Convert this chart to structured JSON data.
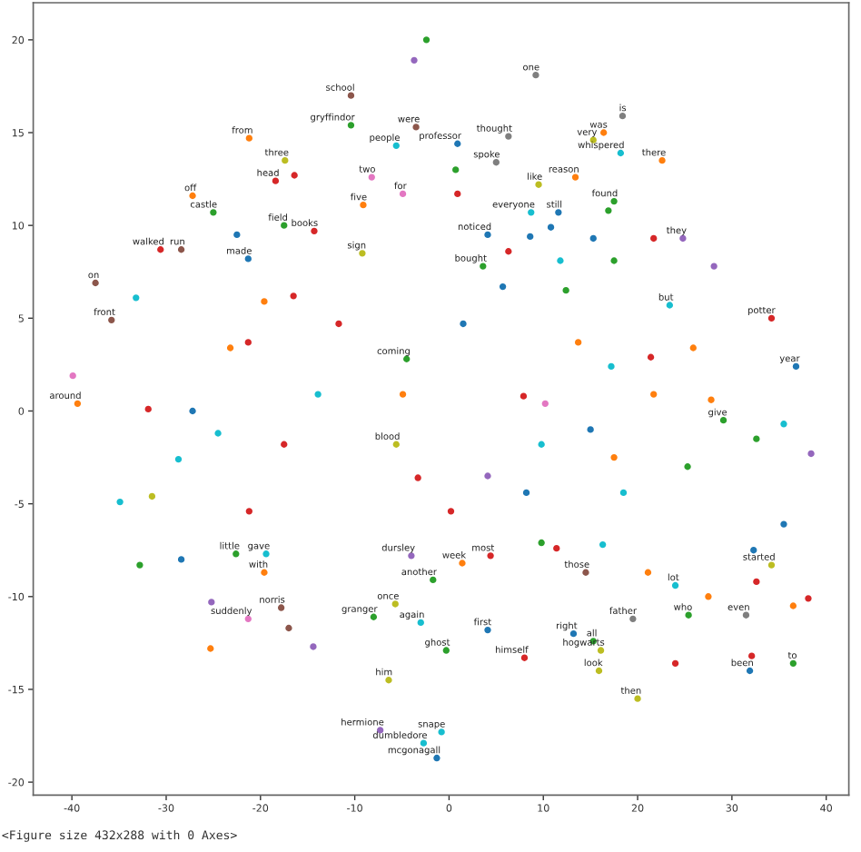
{
  "chart_data": {
    "type": "scatter",
    "marker": "circle",
    "xlim": [
      -44.1,
      42.4
    ],
    "ylim": [
      -20.7,
      22.0
    ],
    "xticks": [
      -40,
      -30,
      -20,
      -10,
      0,
      10,
      20,
      30,
      40
    ],
    "yticks": [
      -20,
      -15,
      -10,
      -5,
      0,
      5,
      10,
      15,
      20
    ],
    "x": [
      -10.4,
      -10.4,
      -21.2,
      -5.6,
      -17.4,
      -18.4,
      -8.2,
      -9.1,
      -4.9,
      -27.2,
      -25.0,
      -17.5,
      -14.3,
      -30.6,
      -28.4,
      -21.3,
      -9.2,
      9.2,
      18.4,
      16.4,
      15.3,
      18.2,
      0.9,
      6.3,
      22.6,
      9.5,
      13.4,
      5.0,
      17.5,
      8.7,
      11.6,
      4.1,
      3.6,
      24.8,
      -37.5,
      -35.8,
      -39.4,
      -5.6,
      -4.5,
      34.2,
      23.4,
      36.8,
      29.1,
      -4.0,
      -1.7,
      -19.6,
      -19.4,
      -22.6,
      -5.7,
      -3.0,
      -8.0,
      -17.8,
      -21.3,
      -6.4,
      -7.3,
      -0.8,
      -2.7,
      -1.3,
      -0.3,
      8.0,
      15.9,
      16.1,
      15.3,
      13.2,
      4.1,
      19.5,
      25.4,
      31.9,
      36.5,
      20.0,
      24.0,
      31.5,
      1.4,
      4.4,
      14.5,
      34.2,
      -33.2,
      -19.6,
      -16.5,
      -11.7,
      -31.9,
      -27.2,
      -24.5,
      -28.7,
      -34.9,
      -31.5,
      -21.2,
      -13.9,
      -17.5,
      -4.9,
      -3.3,
      -23.2,
      -21.3,
      -39.9,
      13.7,
      17.2,
      21.4,
      25.9,
      7.9,
      10.2,
      21.7,
      27.8,
      35.5,
      32.6,
      15.0,
      17.5,
      25.3,
      9.8,
      4.1,
      8.2,
      18.5,
      35.5,
      0.2,
      5.7,
      12.4,
      1.5,
      32.3,
      38.1,
      36.5,
      27.5,
      32.6,
      21.1,
      11.4,
      16.3,
      9.8,
      -22.5,
      0.7,
      0.9,
      16.9,
      8.6,
      10.8,
      15.3,
      21.7,
      6.3,
      11.8,
      17.5,
      28.1,
      -2.4,
      -3.7,
      -32.8,
      -28.4,
      -25.3,
      -14.4,
      -25.2,
      -17.0,
      38.4,
      24.0,
      32.1,
      -16.4,
      -3.5
    ],
    "values": [
      17.0,
      15.4,
      14.7,
      14.3,
      13.5,
      12.4,
      12.6,
      11.1,
      11.7,
      11.6,
      10.7,
      10.0,
      9.7,
      8.7,
      8.7,
      8.2,
      8.5,
      18.1,
      15.9,
      15.0,
      14.6,
      13.9,
      14.4,
      14.8,
      13.5,
      12.2,
      12.6,
      13.4,
      11.3,
      10.7,
      10.7,
      9.5,
      7.8,
      9.3,
      6.9,
      4.9,
      0.4,
      -1.8,
      2.8,
      5.0,
      5.7,
      2.4,
      -0.5,
      -7.8,
      -9.1,
      -8.7,
      -7.7,
      -7.7,
      -10.4,
      -11.4,
      -11.1,
      -10.6,
      -11.2,
      -14.5,
      -17.2,
      -17.3,
      -17.9,
      -18.7,
      -12.9,
      -13.3,
      -14.0,
      -12.9,
      -12.4,
      -12.0,
      -11.8,
      -11.2,
      -11.0,
      -14.0,
      -13.6,
      -15.5,
      -9.4,
      -11.0,
      -8.2,
      -7.8,
      -8.7,
      -8.3,
      6.1,
      5.9,
      6.2,
      4.7,
      0.1,
      0.0,
      -1.2,
      -2.6,
      -4.9,
      -4.6,
      -5.4,
      0.9,
      -1.8,
      0.9,
      -3.6,
      3.4,
      3.7,
      1.9,
      3.7,
      2.4,
      2.9,
      3.4,
      0.8,
      0.4,
      0.9,
      0.6,
      -0.7,
      -1.5,
      -1.0,
      -2.5,
      -3.0,
      -1.8,
      -3.5,
      -4.4,
      -4.4,
      -6.1,
      -5.4,
      6.7,
      6.5,
      4.7,
      -7.5,
      -10.1,
      -10.5,
      -10.0,
      -9.2,
      -8.7,
      -7.4,
      -7.2,
      -7.1,
      9.5,
      13.0,
      11.7,
      10.8,
      9.4,
      9.9,
      9.3,
      9.3,
      8.6,
      8.1,
      8.1,
      7.8,
      20.0,
      18.9,
      -8.3,
      -8.0,
      -12.8,
      -12.7,
      -10.3,
      -11.7,
      -2.3,
      -13.6,
      -13.2,
      12.7,
      15.3
    ],
    "colors": [
      "#8c564b",
      "#2ca02c",
      "#ff7f0e",
      "#17becf",
      "#bcbd22",
      "#d62728",
      "#e377c2",
      "#ff7f0e",
      "#e377c2",
      "#ff7f0e",
      "#2ca02c",
      "#2ca02c",
      "#d62728",
      "#d62728",
      "#8c564b",
      "#1f77b4",
      "#bcbd22",
      "#7f7f7f",
      "#7f7f7f",
      "#ff7f0e",
      "#bcbd22",
      "#17becf",
      "#1f77b4",
      "#7f7f7f",
      "#ff7f0e",
      "#bcbd22",
      "#ff7f0e",
      "#7f7f7f",
      "#2ca02c",
      "#17becf",
      "#1f77b4",
      "#1f77b4",
      "#2ca02c",
      "#9467bd",
      "#8c564b",
      "#8c564b",
      "#ff7f0e",
      "#bcbd22",
      "#2ca02c",
      "#d62728",
      "#17becf",
      "#1f77b4",
      "#2ca02c",
      "#9467bd",
      "#2ca02c",
      "#ff7f0e",
      "#17becf",
      "#2ca02c",
      "#bcbd22",
      "#17becf",
      "#2ca02c",
      "#8c564b",
      "#e377c2",
      "#bcbd22",
      "#9467bd",
      "#17becf",
      "#17becf",
      "#1f77b4",
      "#2ca02c",
      "#d62728",
      "#bcbd22",
      "#bcbd22",
      "#2ca02c",
      "#1f77b4",
      "#1f77b4",
      "#7f7f7f",
      "#2ca02c",
      "#1f77b4",
      "#2ca02c",
      "#bcbd22",
      "#17becf",
      "#7f7f7f",
      "#ff7f0e",
      "#d62728",
      "#8c564b",
      "#bcbd22",
      "#17becf",
      "#ff7f0e",
      "#d62728",
      "#d62728",
      "#d62728",
      "#1f77b4",
      "#17becf",
      "#17becf",
      "#17becf",
      "#bcbd22",
      "#d62728",
      "#17becf",
      "#d62728",
      "#ff7f0e",
      "#d62728",
      "#ff7f0e",
      "#d62728",
      "#e377c2",
      "#ff7f0e",
      "#17becf",
      "#d62728",
      "#ff7f0e",
      "#d62728",
      "#e377c2",
      "#ff7f0e",
      "#ff7f0e",
      "#17becf",
      "#2ca02c",
      "#1f77b4",
      "#ff7f0e",
      "#2ca02c",
      "#17becf",
      "#9467bd",
      "#1f77b4",
      "#17becf",
      "#1f77b4",
      "#d62728",
      "#1f77b4",
      "#2ca02c",
      "#1f77b4",
      "#1f77b4",
      "#d62728",
      "#ff7f0e",
      "#ff7f0e",
      "#d62728",
      "#ff7f0e",
      "#d62728",
      "#17becf",
      "#2ca02c",
      "#1f77b4",
      "#2ca02c",
      "#d62728",
      "#2ca02c",
      "#1f77b4",
      "#1f77b4",
      "#1f77b4",
      "#d62728",
      "#d62728",
      "#17becf",
      "#2ca02c",
      "#9467bd",
      "#2ca02c",
      "#9467bd",
      "#2ca02c",
      "#1f77b4",
      "#ff7f0e",
      "#9467bd",
      "#9467bd",
      "#8c564b",
      "#9467bd",
      "#d62728",
      "#d62728",
      "#d62728",
      "#8c564b"
    ],
    "annotations": [
      {
        "text": "school",
        "x": -10.4,
        "y": 17.0
      },
      {
        "text": "gryffindor",
        "x": -10.4,
        "y": 15.4
      },
      {
        "text": "from",
        "x": -21.2,
        "y": 14.7
      },
      {
        "text": "people",
        "x": -5.6,
        "y": 14.3
      },
      {
        "text": "three",
        "x": -17.4,
        "y": 13.5
      },
      {
        "text": "head",
        "x": -18.4,
        "y": 12.4
      },
      {
        "text": "two",
        "x": -8.2,
        "y": 12.6
      },
      {
        "text": "five",
        "x": -9.1,
        "y": 11.1
      },
      {
        "text": "for",
        "x": -4.9,
        "y": 11.7
      },
      {
        "text": "off",
        "x": -27.2,
        "y": 11.6
      },
      {
        "text": "castle",
        "x": -25.0,
        "y": 10.7
      },
      {
        "text": "field",
        "x": -17.5,
        "y": 10.0
      },
      {
        "text": "books",
        "x": -14.3,
        "y": 9.7
      },
      {
        "text": "walked",
        "x": -30.6,
        "y": 8.7
      },
      {
        "text": "run",
        "x": -28.4,
        "y": 8.7
      },
      {
        "text": "made",
        "x": -21.3,
        "y": 8.2
      },
      {
        "text": "sign",
        "x": -9.2,
        "y": 8.5
      },
      {
        "text": "one",
        "x": 9.2,
        "y": 18.1
      },
      {
        "text": "is",
        "x": 18.4,
        "y": 15.9
      },
      {
        "text": "was",
        "x": 16.4,
        "y": 15.0
      },
      {
        "text": "very",
        "x": 15.3,
        "y": 14.6
      },
      {
        "text": "whispered",
        "x": 18.2,
        "y": 13.9
      },
      {
        "text": "professor",
        "x": 0.9,
        "y": 14.4
      },
      {
        "text": "thought",
        "x": 6.3,
        "y": 14.8
      },
      {
        "text": "there",
        "x": 22.6,
        "y": 13.5
      },
      {
        "text": "like",
        "x": 9.5,
        "y": 12.2
      },
      {
        "text": "reason",
        "x": 13.4,
        "y": 12.6
      },
      {
        "text": "spoke",
        "x": 5.0,
        "y": 13.4
      },
      {
        "text": "found",
        "x": 17.5,
        "y": 11.3
      },
      {
        "text": "everyone",
        "x": 8.7,
        "y": 10.7
      },
      {
        "text": "still",
        "x": 11.6,
        "y": 10.7
      },
      {
        "text": "noticed",
        "x": 4.1,
        "y": 9.5
      },
      {
        "text": "bought",
        "x": 3.6,
        "y": 7.8
      },
      {
        "text": "they",
        "x": 24.8,
        "y": 9.3
      },
      {
        "text": "on",
        "x": -37.5,
        "y": 6.9
      },
      {
        "text": "front",
        "x": -35.8,
        "y": 4.9
      },
      {
        "text": "around",
        "x": -39.4,
        "y": 0.4
      },
      {
        "text": "blood",
        "x": -5.6,
        "y": -1.8
      },
      {
        "text": "coming",
        "x": -4.5,
        "y": 2.8
      },
      {
        "text": "potter",
        "x": 34.2,
        "y": 5.0
      },
      {
        "text": "but",
        "x": 23.4,
        "y": 5.7
      },
      {
        "text": "year",
        "x": 36.8,
        "y": 2.4
      },
      {
        "text": "give",
        "x": 29.1,
        "y": -0.5
      },
      {
        "text": "dursley",
        "x": -4.0,
        "y": -7.8
      },
      {
        "text": "another",
        "x": -1.7,
        "y": -9.1
      },
      {
        "text": "with",
        "x": -19.6,
        "y": -8.7
      },
      {
        "text": "gave",
        "x": -19.4,
        "y": -7.7
      },
      {
        "text": "little",
        "x": -22.6,
        "y": -7.7
      },
      {
        "text": "once",
        "x": -5.7,
        "y": -10.4
      },
      {
        "text": "again",
        "x": -3.0,
        "y": -11.4
      },
      {
        "text": "granger",
        "x": -8.0,
        "y": -11.1
      },
      {
        "text": "norris",
        "x": -17.8,
        "y": -10.6
      },
      {
        "text": "suddenly",
        "x": -21.3,
        "y": -11.2
      },
      {
        "text": "him",
        "x": -6.4,
        "y": -14.5
      },
      {
        "text": "hermione",
        "x": -7.3,
        "y": -17.2
      },
      {
        "text": "snape",
        "x": -0.8,
        "y": -17.3
      },
      {
        "text": "dumbledore",
        "x": -2.7,
        "y": -17.9
      },
      {
        "text": "mcgonagall",
        "x": -1.3,
        "y": -18.7
      },
      {
        "text": "ghost",
        "x": -0.3,
        "y": -12.9
      },
      {
        "text": "himself",
        "x": 8.0,
        "y": -13.3
      },
      {
        "text": "look",
        "x": 15.9,
        "y": -14.0
      },
      {
        "text": "hogwarts",
        "x": 16.1,
        "y": -12.9
      },
      {
        "text": "all",
        "x": 15.3,
        "y": -12.4
      },
      {
        "text": "right",
        "x": 13.2,
        "y": -12.0
      },
      {
        "text": "first",
        "x": 4.1,
        "y": -11.8
      },
      {
        "text": "father",
        "x": 19.5,
        "y": -11.2
      },
      {
        "text": "who",
        "x": 25.4,
        "y": -11.0
      },
      {
        "text": "been",
        "x": 31.9,
        "y": -14.0
      },
      {
        "text": "to",
        "x": 36.5,
        "y": -13.6
      },
      {
        "text": "then",
        "x": 20.0,
        "y": -15.5
      },
      {
        "text": "lot",
        "x": 24.0,
        "y": -9.4
      },
      {
        "text": "even",
        "x": 31.5,
        "y": -11.0
      },
      {
        "text": "week",
        "x": 1.4,
        "y": -8.2
      },
      {
        "text": "most",
        "x": 4.4,
        "y": -7.8
      },
      {
        "text": "those",
        "x": 14.5,
        "y": -8.7
      },
      {
        "text": "started",
        "x": 34.2,
        "y": -8.3
      },
      {
        "text": "were",
        "x": -3.5,
        "y": 15.3
      },
      "<Figure size 432x288 with 0 Axes>"
    ]
  }
}
